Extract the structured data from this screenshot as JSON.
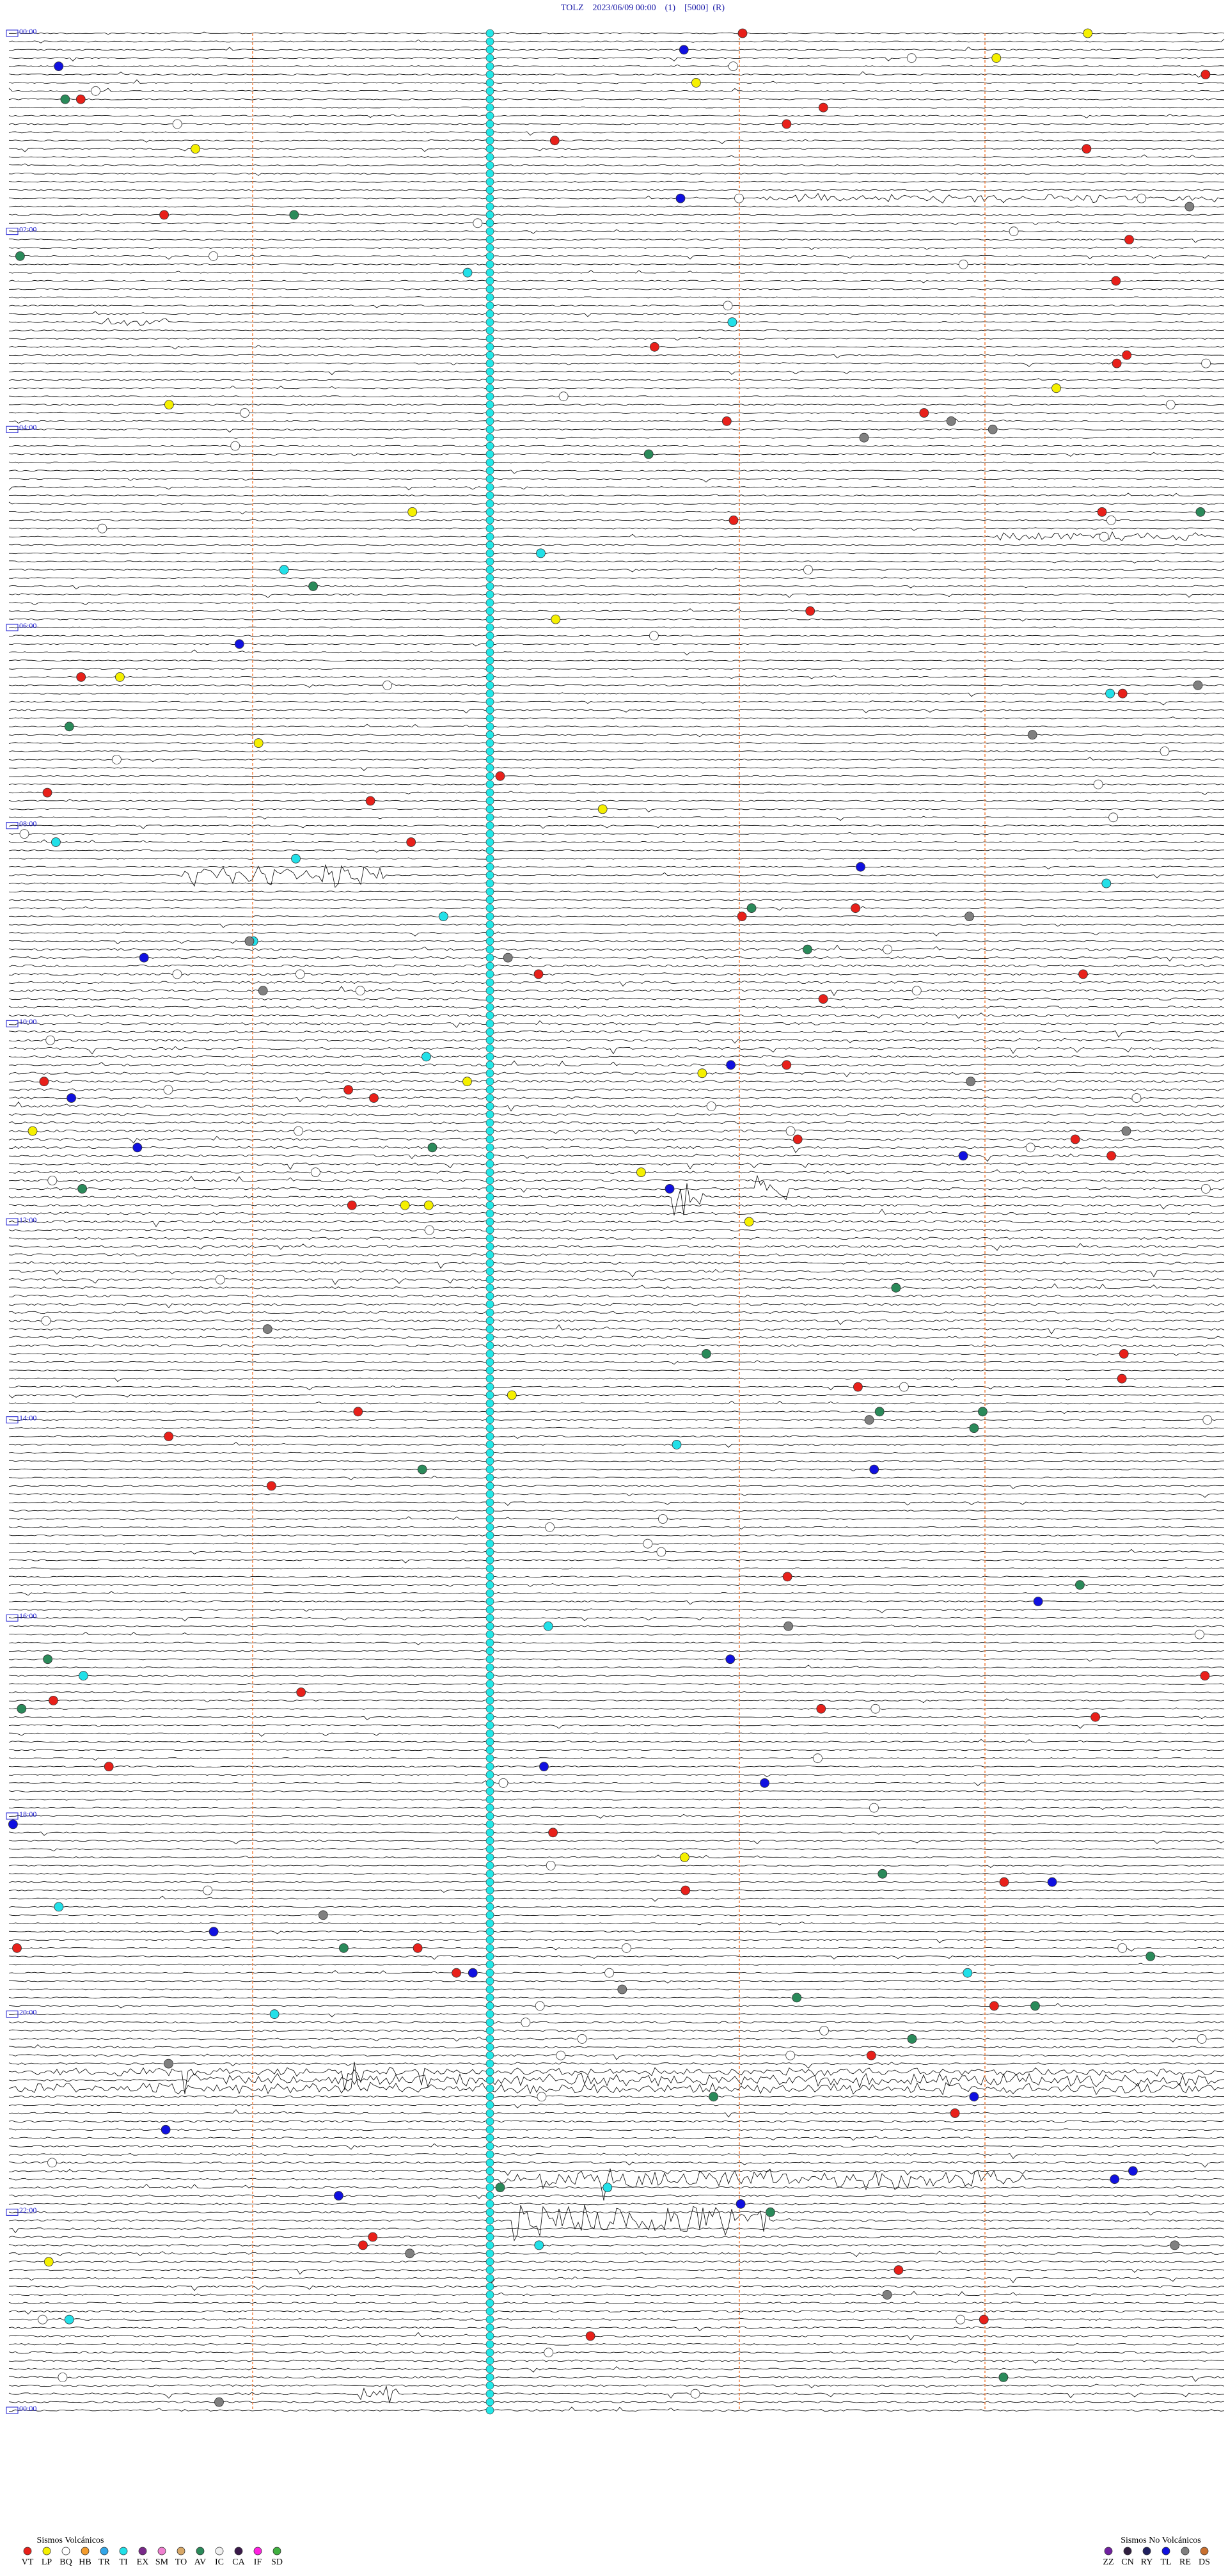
{
  "header": {
    "title": "TOLZ    2023/06/09 00:00    (1)    [5000]  (R)"
  },
  "time_labels": [
    "00:00",
    "02:00",
    "04:00",
    "06:00",
    "08:00",
    "10:00",
    "12:00",
    "14:00",
    "16:00",
    "18:00",
    "20:00",
    "22:00",
    "00:00"
  ],
  "legend": {
    "volcanic": {
      "title": "Sismos Volcánicos",
      "items": [
        {
          "code": "VT",
          "color": "#e8201a"
        },
        {
          "code": "LP",
          "color": "#f5f000"
        },
        {
          "code": "BQ",
          "color": "#ffffff"
        },
        {
          "code": "HB",
          "color": "#f39c2e"
        },
        {
          "code": "TR",
          "color": "#33a6e8"
        },
        {
          "code": "TI",
          "color": "#22e0e8"
        },
        {
          "code": "EX",
          "color": "#7a2a8a"
        },
        {
          "code": "SM",
          "color": "#f080d0"
        },
        {
          "code": "TO",
          "color": "#d8a868"
        },
        {
          "code": "AV",
          "color": "#2a8a5a"
        },
        {
          "code": "IC",
          "color": "#f0f0f0"
        },
        {
          "code": "CA",
          "color": "#3a1a4a"
        },
        {
          "code": "IF",
          "color": "#ff20e0"
        },
        {
          "code": "SD",
          "color": "#40b040"
        }
      ]
    },
    "non_volcanic": {
      "title": "Sismos No Volcánicos",
      "items": [
        {
          "code": "ZZ",
          "color": "#7020a0"
        },
        {
          "code": "CN",
          "color": "#302040"
        },
        {
          "code": "RY",
          "color": "#202060"
        },
        {
          "code": "TL",
          "color": "#1010e0"
        },
        {
          "code": "RE",
          "color": "#808080"
        },
        {
          "code": "DS",
          "color": "#c87030"
        }
      ]
    }
  }
}
